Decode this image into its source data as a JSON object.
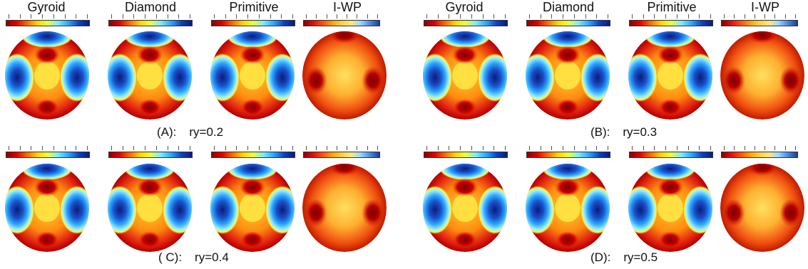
{
  "columns": [
    "Gyroid",
    "Diamond",
    "Primitive",
    "I-WP"
  ],
  "panels": [
    {
      "label": "(A):",
      "value": "ry=0.2"
    },
    {
      "label": "(B):",
      "value": "ry=0.3"
    },
    {
      "label": "( C):",
      "value": "ry=0.4"
    },
    {
      "label": "(D):",
      "value": "ry=0.5"
    }
  ],
  "colors": {
    "deep_red": "#8b0000",
    "red": "#e00000",
    "orange": "#ff6a00",
    "yellow": "#ffd400",
    "cyan": "#7ee8ff",
    "blue": "#1040c0",
    "navy": "#0a1c7a"
  }
}
